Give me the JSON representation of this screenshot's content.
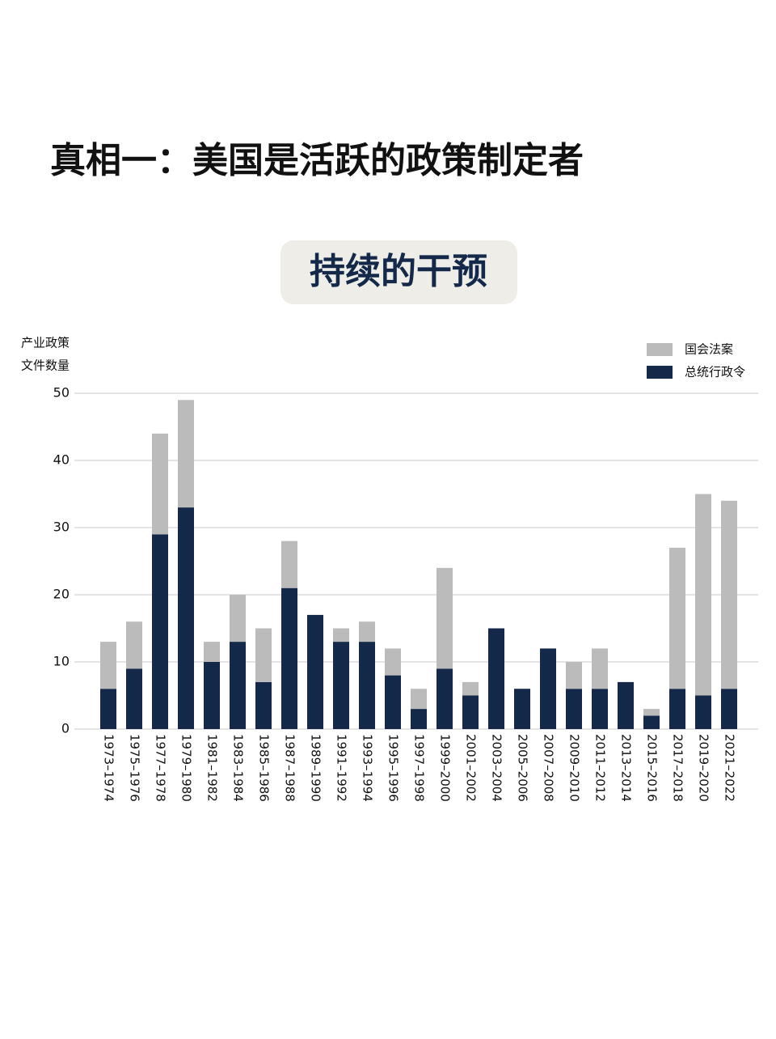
{
  "header": {
    "title": "真相一：美国是活跃的政策制定者"
  },
  "chart_data": {
    "type": "stacked_bar",
    "title": "持续的干预",
    "ylabel": [
      "产业政策",
      "文件数量"
    ],
    "categories": [
      "1973–1974",
      "1975–1976",
      "1977–1978",
      "1979–1980",
      "1981–1982",
      "1983–1984",
      "1985–1986",
      "1987–1988",
      "1989–1990",
      "1991–1992",
      "1993–1994",
      "1995–1996",
      "1997–1998",
      "1999–2000",
      "2001–2002",
      "2003–2004",
      "2005–2006",
      "2007–2008",
      "2009–2010",
      "2011–2012",
      "2013–2014",
      "2015–2016",
      "2017–2018",
      "2019–2020",
      "2021–2022"
    ],
    "series": [
      {
        "name": "国会法案",
        "color": "#bcbbbb",
        "values": [
          7,
          7,
          15,
          16,
          3,
          7,
          8,
          7,
          0,
          2,
          3,
          4,
          3,
          15,
          2,
          0,
          0,
          0,
          4,
          6,
          0,
          1,
          21,
          30,
          28
        ]
      },
      {
        "name": "总统行政令",
        "color": "#14294a",
        "values": [
          6,
          9,
          29,
          33,
          10,
          13,
          7,
          21,
          17,
          13,
          13,
          8,
          3,
          9,
          5,
          15,
          6,
          12,
          6,
          6,
          7,
          2,
          6,
          5,
          6
        ]
      }
    ],
    "stack_order": [
      1,
      0
    ],
    "ylim": [
      0,
      50
    ],
    "yticks": [
      0,
      10,
      20,
      30,
      40,
      50
    ],
    "grid": true,
    "legend": "top-right"
  }
}
